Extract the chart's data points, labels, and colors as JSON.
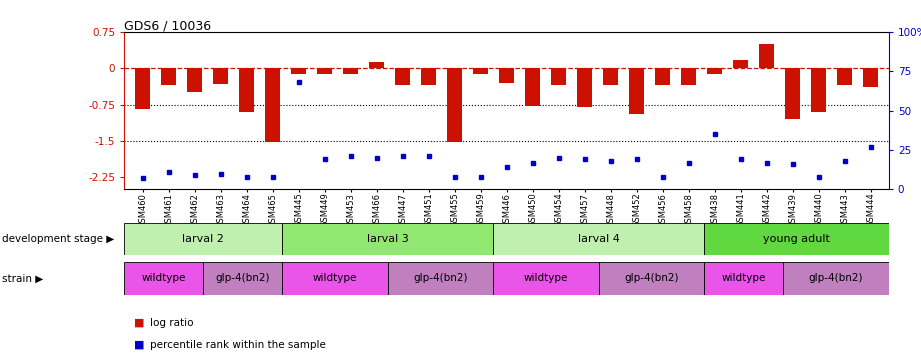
{
  "title": "GDS6 / 10036",
  "samples": [
    "GSM460",
    "GSM461",
    "GSM462",
    "GSM463",
    "GSM464",
    "GSM465",
    "GSM445",
    "GSM449",
    "GSM453",
    "GSM466",
    "GSM447",
    "GSM451",
    "GSM455",
    "GSM459",
    "GSM446",
    "GSM450",
    "GSM454",
    "GSM457",
    "GSM448",
    "GSM452",
    "GSM456",
    "GSM458",
    "GSM438",
    "GSM441",
    "GSM442",
    "GSM439",
    "GSM440",
    "GSM443",
    "GSM444"
  ],
  "log_ratio": [
    -0.85,
    -0.35,
    -0.48,
    -0.32,
    -0.9,
    -1.52,
    -0.12,
    -0.12,
    -0.12,
    0.13,
    -0.35,
    -0.35,
    -1.5,
    -0.12,
    -0.3,
    -0.78,
    -0.35,
    -0.78,
    -0.35,
    -0.95,
    -0.35,
    -0.35,
    -0.12,
    0.17,
    0.5,
    -1.05,
    -0.9,
    -0.35,
    -0.38
  ],
  "percentile": [
    7,
    11,
    9,
    10,
    8,
    8,
    68,
    19,
    21,
    20,
    21,
    21,
    8,
    8,
    14,
    17,
    20,
    19,
    18,
    19,
    8,
    17,
    35,
    19,
    17,
    16,
    8,
    18,
    27
  ],
  "dev_stage_groups": [
    {
      "label": "larval 2",
      "start": 0,
      "end": 6,
      "color": "#c0f0b0"
    },
    {
      "label": "larval 3",
      "start": 6,
      "end": 14,
      "color": "#90e870"
    },
    {
      "label": "larval 4",
      "start": 14,
      "end": 22,
      "color": "#c0f0b0"
    },
    {
      "label": "young adult",
      "start": 22,
      "end": 29,
      "color": "#60d840"
    }
  ],
  "strain_groups": [
    {
      "label": "wildtype",
      "start": 0,
      "end": 3,
      "color": "#e855e8"
    },
    {
      "label": "glp-4(bn2)",
      "start": 3,
      "end": 6,
      "color": "#c080c0"
    },
    {
      "label": "wildtype",
      "start": 6,
      "end": 10,
      "color": "#e855e8"
    },
    {
      "label": "glp-4(bn2)",
      "start": 10,
      "end": 14,
      "color": "#c080c0"
    },
    {
      "label": "wildtype",
      "start": 14,
      "end": 18,
      "color": "#e855e8"
    },
    {
      "label": "glp-4(bn2)",
      "start": 18,
      "end": 22,
      "color": "#c080c0"
    },
    {
      "label": "wildtype",
      "start": 22,
      "end": 25,
      "color": "#e855e8"
    },
    {
      "label": "glp-4(bn2)",
      "start": 25,
      "end": 29,
      "color": "#c080c0"
    }
  ],
  "ylim_left": [
    -2.5,
    0.75
  ],
  "ylim_right": [
    0,
    100
  ],
  "yticks_left": [
    -2.25,
    -1.5,
    -0.75,
    0.0,
    0.75
  ],
  "ytick_labels_left": [
    "-2.25",
    "-1.5",
    "-0.75",
    "0",
    "0.75"
  ],
  "yticks_right": [
    0,
    25,
    50,
    75,
    100
  ],
  "ytick_labels_right": [
    "0",
    "25",
    "50",
    "75",
    "100%"
  ],
  "hlines": [
    -0.75,
    -1.5
  ],
  "bar_color": "#cc1100",
  "dot_color": "#0000cc",
  "zero_line_color": "#cc1100",
  "dev_label": "development stage ▶",
  "strain_label": "strain ▶",
  "legend_bar": "log ratio",
  "legend_dot": "percentile rank within the sample"
}
